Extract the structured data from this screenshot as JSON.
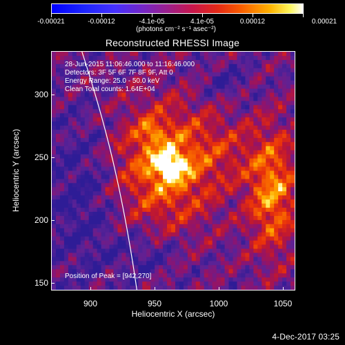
{
  "colorbar": {
    "tick_labels": [
      "-0.00021",
      "-0.00012",
      "-4.1e-05",
      "4.1e-05",
      "0.00012",
      "0.00021"
    ],
    "units": "(photons cm⁻² s⁻¹ asec⁻²)",
    "colors": [
      "#0000ff",
      "#4530ff",
      "#9b1f8c",
      "#e42916",
      "#ffb300",
      "#ffffff"
    ]
  },
  "title": "Reconstructed RHESSI Image",
  "info_lines": [
    "28-Jun-2015 11:06:46.000 to 11:16:46.000",
    "Detectors: 3F 5F 6F 7F 8F 9F, Att 0",
    "Energy Range: 25.0 - 50.0 keV",
    "Clean     Total counts: 1.64E+04"
  ],
  "peak": "Position of Peak = [942,270]",
  "axes": {
    "xlabel": "Heliocentric X (arcsec)",
    "ylabel": "Heliocentric Y (arcsec)",
    "xticks": [
      "900",
      "950",
      "1000",
      "1050"
    ],
    "yticks": [
      "300",
      "250",
      "200",
      "150"
    ]
  },
  "timestamp": "4-Dec-2017 03:25"
}
